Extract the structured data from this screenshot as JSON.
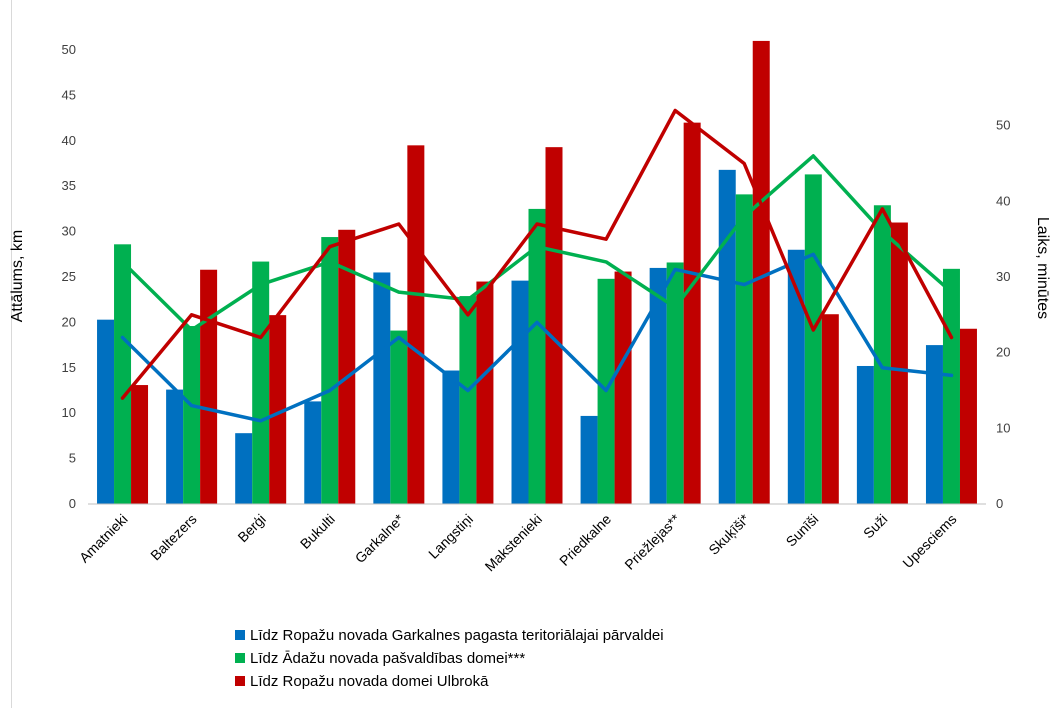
{
  "chart_data": {
    "type": "bar",
    "categories": [
      "Amatnieki",
      "Baltezers",
      "Berģi",
      "Bukulti",
      "Garkalne*",
      "Langstiņi",
      "Makstenieki",
      "Priedkalne",
      "Priežlejas**",
      "Skuķīši*",
      "Sunīši",
      "Suži",
      "Upesciems"
    ],
    "series": [
      {
        "name": "Līdz Ropažu novada Garkalnes pagasta teritoriālajai pārvaldei",
        "color": "#0070c0",
        "values": [
          20.3,
          12.6,
          7.8,
          11.3,
          25.5,
          14.7,
          24.6,
          9.7,
          26.0,
          36.8,
          28.0,
          15.2,
          17.5
        ],
        "line_values": [
          22,
          13,
          11,
          15,
          22,
          15,
          24,
          15,
          31,
          29,
          33,
          18,
          17
        ]
      },
      {
        "name": "Līdz Ādažu novada pašvaldības domei***",
        "color": "#00b050",
        "values": [
          28.6,
          19.6,
          26.7,
          29.4,
          19.1,
          22.9,
          32.5,
          24.8,
          26.6,
          34.1,
          36.3,
          32.9,
          25.9
        ],
        "line_values": [
          32,
          23,
          29,
          32,
          28,
          27,
          34,
          32,
          26,
          38,
          46,
          36,
          28
        ]
      },
      {
        "name": "Līdz Ropažu novada domei Ulbrokā",
        "color": "#c00000",
        "values": [
          13.1,
          25.8,
          20.8,
          30.2,
          39.5,
          24.5,
          39.3,
          25.6,
          42.0,
          51.0,
          20.9,
          31.0,
          19.3
        ],
        "line_values": [
          14,
          25,
          22,
          34,
          37,
          25,
          37,
          35,
          52,
          45,
          23,
          39,
          22
        ]
      }
    ],
    "ylabel": "Attālums, km",
    "y2label": "Laiks, minūtes",
    "ylim": [
      0,
      50
    ],
    "y_ticks": [
      "0",
      "5",
      "10",
      "15",
      "20",
      "25",
      "30",
      "35",
      "40",
      "45",
      "50"
    ],
    "y2lim": [
      0,
      60
    ],
    "y2_ticks": [
      "0",
      "10",
      "20",
      "30",
      "40",
      "50"
    ],
    "grid": false,
    "legend_position": "bottom"
  }
}
